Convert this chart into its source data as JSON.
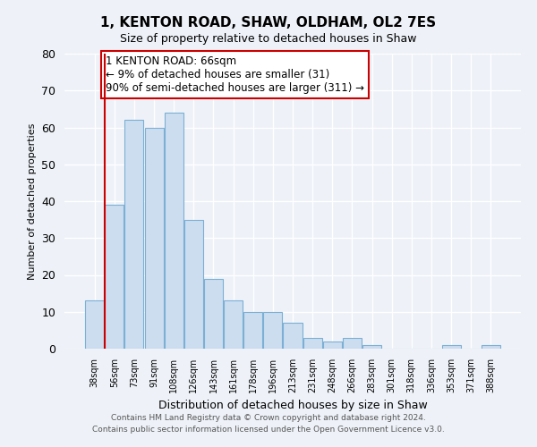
{
  "title": "1, KENTON ROAD, SHAW, OLDHAM, OL2 7ES",
  "subtitle": "Size of property relative to detached houses in Shaw",
  "xlabel": "Distribution of detached houses by size in Shaw",
  "ylabel": "Number of detached properties",
  "bin_labels": [
    "38sqm",
    "56sqm",
    "73sqm",
    "91sqm",
    "108sqm",
    "126sqm",
    "143sqm",
    "161sqm",
    "178sqm",
    "196sqm",
    "213sqm",
    "231sqm",
    "248sqm",
    "266sqm",
    "283sqm",
    "301sqm",
    "318sqm",
    "336sqm",
    "353sqm",
    "371sqm",
    "388sqm"
  ],
  "bar_values": [
    13,
    39,
    62,
    60,
    64,
    35,
    19,
    13,
    10,
    10,
    7,
    3,
    2,
    3,
    1,
    0,
    0,
    0,
    1,
    0,
    1
  ],
  "bar_color": "#ccddf0",
  "bar_edge_color": "#7bafd4",
  "vline_color": "#cc0000",
  "vline_bin_index": 1,
  "annotation_text": "1 KENTON ROAD: 66sqm\n← 9% of detached houses are smaller (31)\n90% of semi-detached houses are larger (311) →",
  "annotation_box_color": "#ffffff",
  "annotation_box_edge": "#cc0000",
  "ylim": [
    0,
    80
  ],
  "yticks": [
    0,
    10,
    20,
    30,
    40,
    50,
    60,
    70,
    80
  ],
  "footer1": "Contains HM Land Registry data © Crown copyright and database right 2024.",
  "footer2": "Contains public sector information licensed under the Open Government Licence v3.0.",
  "bg_color": "#eef2f8",
  "plot_bg_color": "#eef2f8"
}
